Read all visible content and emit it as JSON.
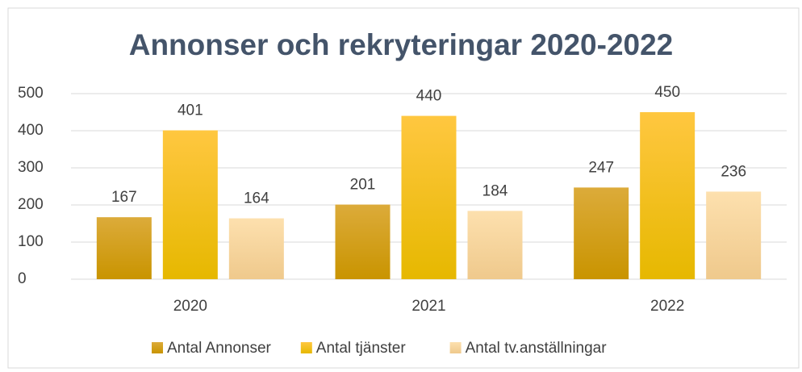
{
  "chart_data": {
    "type": "bar",
    "title": "Annonser och rekryteringar 2020-2022",
    "categories": [
      "2020",
      "2021",
      "2022"
    ],
    "series": [
      {
        "name": "Antal Annonser",
        "color": "#d4a017",
        "values": [
          167,
          201,
          247
        ]
      },
      {
        "name": "Antal tjänster",
        "color": "#ffc000",
        "values": [
          401,
          440,
          450
        ]
      },
      {
        "name": "Antal tv.anställningar",
        "color": "#f8d8a0",
        "values": [
          164,
          184,
          236
        ]
      }
    ],
    "ylim": [
      0,
      500
    ],
    "yticks": [
      0,
      100,
      200,
      300,
      400,
      500
    ],
    "grid": true,
    "legend": "bottom"
  }
}
